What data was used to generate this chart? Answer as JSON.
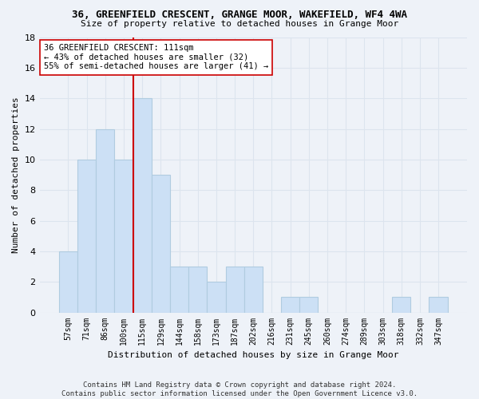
{
  "title": "36, GREENFIELD CRESCENT, GRANGE MOOR, WAKEFIELD, WF4 4WA",
  "subtitle": "Size of property relative to detached houses in Grange Moor",
  "xlabel": "Distribution of detached houses by size in Grange Moor",
  "ylabel": "Number of detached properties",
  "categories": [
    "57sqm",
    "71sqm",
    "86sqm",
    "100sqm",
    "115sqm",
    "129sqm",
    "144sqm",
    "158sqm",
    "173sqm",
    "187sqm",
    "202sqm",
    "216sqm",
    "231sqm",
    "245sqm",
    "260sqm",
    "274sqm",
    "289sqm",
    "303sqm",
    "318sqm",
    "332sqm",
    "347sqm"
  ],
  "values": [
    4,
    10,
    12,
    10,
    14,
    9,
    3,
    3,
    2,
    3,
    3,
    0,
    1,
    1,
    0,
    0,
    0,
    0,
    1,
    0,
    1
  ],
  "bar_color": "#cce0f5",
  "bar_edge_color": "#b0cce0",
  "grid_color": "#dce4ee",
  "background_color": "#eef2f8",
  "vline_index": 4,
  "vline_color": "#cc0000",
  "annotation_line1": "36 GREENFIELD CRESCENT: 111sqm",
  "annotation_line2": "← 43% of detached houses are smaller (32)",
  "annotation_line3": "55% of semi-detached houses are larger (41) →",
  "annotation_box_color": "#ffffff",
  "annotation_box_edge": "#cc0000",
  "footnote": "Contains HM Land Registry data © Crown copyright and database right 2024.\nContains public sector information licensed under the Open Government Licence v3.0.",
  "ylim": [
    0,
    18
  ],
  "yticks": [
    0,
    2,
    4,
    6,
    8,
    10,
    12,
    14,
    16,
    18
  ]
}
